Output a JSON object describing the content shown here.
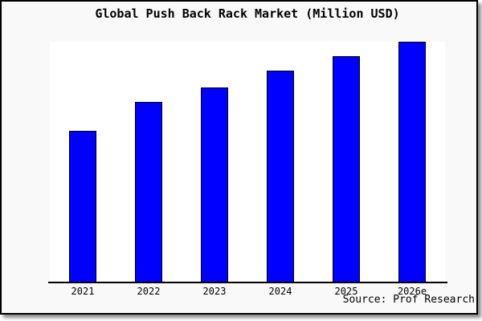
{
  "chart": {
    "title": "Global Push Back Rack Market (Million USD)",
    "source": "Source: Prof Research"
  },
  "colors": {
    "bar_fill": "#0000FF",
    "bar_border": "#000000",
    "card_bg": "#f9f9f9",
    "plot_bg": "#ffffff",
    "frame_border": "#000000",
    "text": "#000000"
  },
  "chart_data": {
    "type": "bar",
    "title": "Global Push Back Rack Market (Million USD)",
    "categories": [
      "2021",
      "2022",
      "2023",
      "2024",
      "2025",
      "2026e"
    ],
    "values": [
      63,
      75,
      81,
      88,
      94,
      100
    ],
    "units": "relative height, no numeric y-axis shown (2026e bar = 100)",
    "xlabel": "",
    "ylabel": "",
    "ylim": [
      0,
      100
    ],
    "grid": false,
    "legend": "none",
    "annotations": [
      "Source: Prof Research"
    ]
  }
}
